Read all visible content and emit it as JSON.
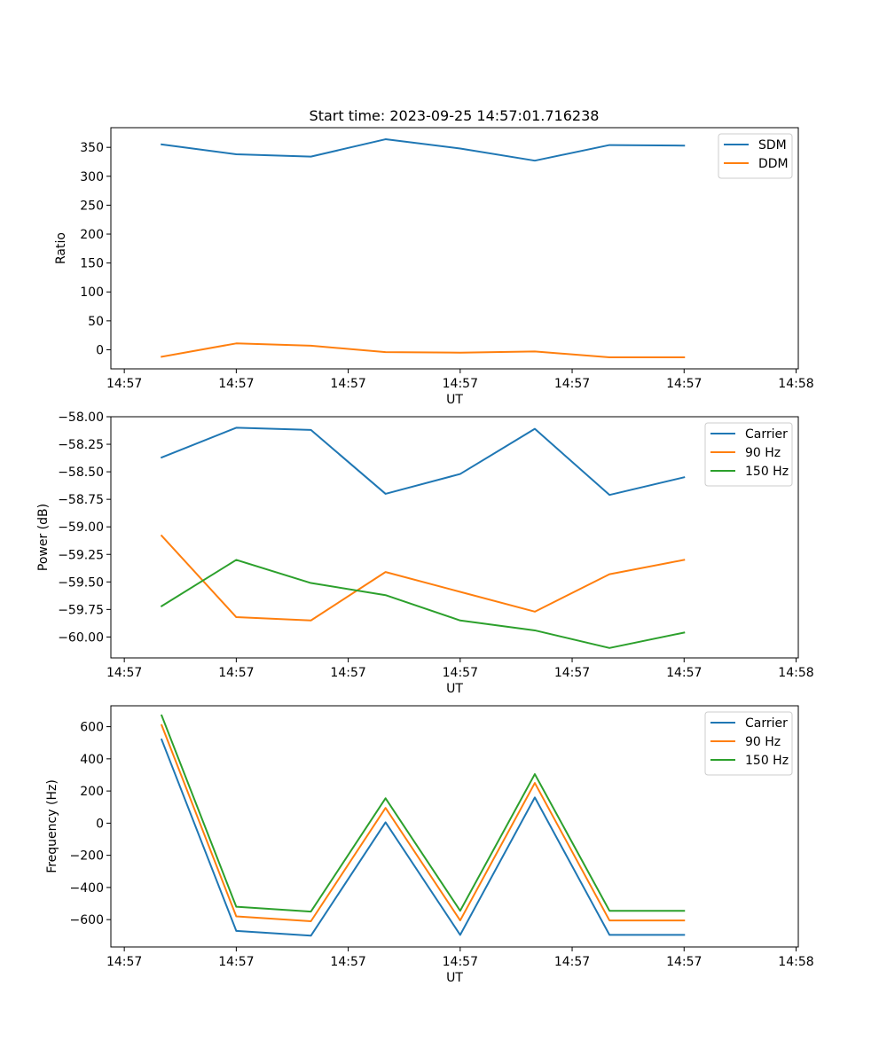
{
  "title": "Start time: 2023-09-25 14:57:01.716238",
  "colors": {
    "blue": "#1f77b4",
    "orange": "#ff7f0e",
    "green": "#2ca02c"
  },
  "chart_data": [
    {
      "type": "line",
      "ylabel": "Ratio",
      "xlabel": "UT",
      "x": [
        0.5,
        1.5,
        2.5,
        3.5,
        4.5,
        5.5,
        6.5,
        7.5
      ],
      "x_ticks": [
        0,
        1.5,
        3,
        4.5,
        6,
        7.5,
        9
      ],
      "x_tick_labels": [
        "14:57",
        "14:57",
        "14:57",
        "14:57",
        "14:57",
        "14:57",
        "14:58"
      ],
      "xlim": [
        -0.18,
        9.03
      ],
      "ylim": [
        -33,
        384
      ],
      "y_ticks": [
        0,
        50,
        100,
        150,
        200,
        250,
        300,
        350
      ],
      "y_tick_labels": [
        "0",
        "50",
        "100",
        "150",
        "200",
        "250",
        "300",
        "350"
      ],
      "legend_position": "top-right",
      "series": [
        {
          "name": "SDM",
          "color": "#1f77b4",
          "values": [
            355,
            338,
            334,
            364,
            348,
            327,
            354,
            353
          ]
        },
        {
          "name": "DDM",
          "color": "#ff7f0e",
          "values": [
            -12,
            11,
            7,
            -4,
            -5,
            -3,
            -13,
            -13
          ]
        }
      ]
    },
    {
      "type": "line",
      "ylabel": "Power (dB)",
      "xlabel": "UT",
      "x": [
        0.5,
        1.5,
        2.5,
        3.5,
        4.5,
        5.5,
        6.5,
        7.5
      ],
      "x_ticks": [
        0,
        1.5,
        3,
        4.5,
        6,
        7.5,
        9
      ],
      "x_tick_labels": [
        "14:57",
        "14:57",
        "14:57",
        "14:57",
        "14:57",
        "14:57",
        "14:58"
      ],
      "xlim": [
        -0.18,
        9.03
      ],
      "ylim": [
        -60.19,
        -58.0
      ],
      "y_ticks": [
        -60.0,
        -59.75,
        -59.5,
        -59.25,
        -59.0,
        -58.75,
        -58.5,
        -58.25,
        -58.0
      ],
      "y_tick_labels": [
        "−60.00",
        "−59.75",
        "−59.50",
        "−59.25",
        "−59.00",
        "−58.75",
        "−58.50",
        "−58.25",
        "−58.00"
      ],
      "legend_position": "top-right",
      "series": [
        {
          "name": "Carrier",
          "color": "#1f77b4",
          "values": [
            -58.37,
            -58.1,
            -58.12,
            -58.7,
            -58.52,
            -58.11,
            -58.71,
            -58.55
          ]
        },
        {
          "name": "90 Hz",
          "color": "#ff7f0e",
          "values": [
            -59.08,
            -59.82,
            -59.85,
            -59.41,
            -59.59,
            -59.77,
            -59.43,
            -59.3
          ]
        },
        {
          "name": "150 Hz",
          "color": "#2ca02c",
          "values": [
            -59.72,
            -59.3,
            -59.51,
            -59.62,
            -59.85,
            -59.94,
            -60.1,
            -59.96
          ]
        }
      ]
    },
    {
      "type": "line",
      "ylabel": "Frequency (Hz)",
      "xlabel": "UT",
      "x": [
        0.5,
        1.5,
        2.5,
        3.5,
        4.5,
        5.5,
        6.5,
        7.5
      ],
      "x_ticks": [
        0,
        1.5,
        3,
        4.5,
        6,
        7.5,
        9
      ],
      "x_tick_labels": [
        "14:57",
        "14:57",
        "14:57",
        "14:57",
        "14:57",
        "14:57",
        "14:58"
      ],
      "xlim": [
        -0.18,
        9.03
      ],
      "ylim": [
        -770,
        730
      ],
      "y_ticks": [
        -600,
        -400,
        -200,
        0,
        200,
        400,
        600
      ],
      "y_tick_labels": [
        "−600",
        "−400",
        "−200",
        "0",
        "200",
        "400",
        "600"
      ],
      "legend_position": "top-right",
      "series": [
        {
          "name": "Carrier",
          "color": "#1f77b4",
          "values": [
            520,
            -670,
            -700,
            5,
            -695,
            160,
            -695,
            -695
          ]
        },
        {
          "name": "90 Hz",
          "color": "#ff7f0e",
          "values": [
            610,
            -580,
            -610,
            95,
            -605,
            250,
            -605,
            -605
          ]
        },
        {
          "name": "150 Hz",
          "color": "#2ca02c",
          "values": [
            670,
            -520,
            -550,
            155,
            -545,
            305,
            -545,
            -545
          ]
        }
      ]
    }
  ]
}
